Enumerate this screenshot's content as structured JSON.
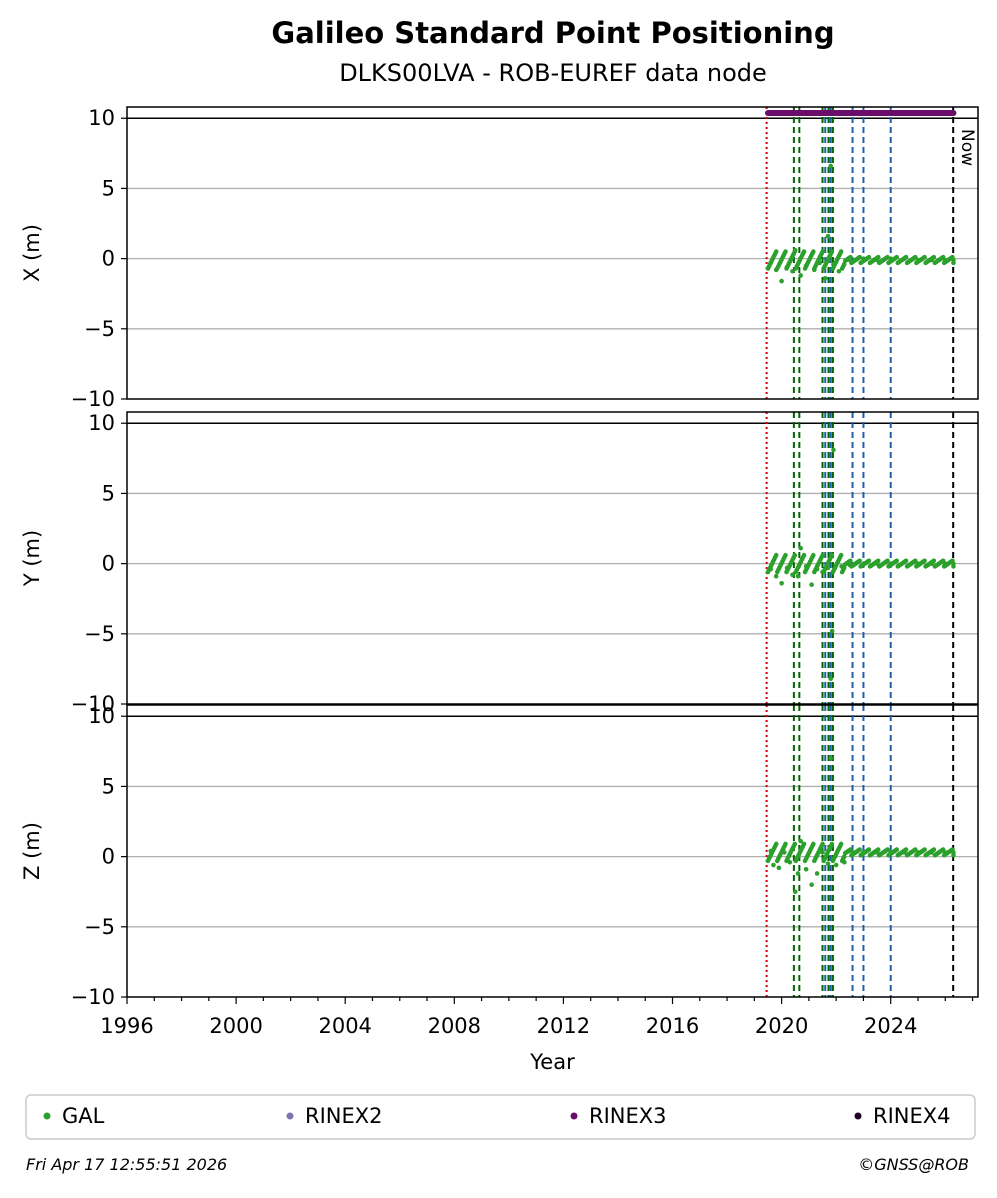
{
  "chart_data": {
    "type": "scatter",
    "title": "Galileo Standard Point Positioning",
    "subtitle": "DLKS00LVA - ROB-EUREF data node",
    "xlabel": "Year",
    "xlim": [
      1996,
      2027.2
    ],
    "xticks": [
      1996,
      2000,
      2004,
      2008,
      2012,
      2016,
      2020,
      2024
    ],
    "panels": [
      {
        "ylabel": "X (m)",
        "ylim": [
          -10,
          10
        ],
        "yticks": [
          -10,
          -5,
          0,
          5,
          10
        ],
        "grid": true
      },
      {
        "ylabel": "Y (m)",
        "ylim": [
          -10,
          10
        ],
        "yticks": [
          -10,
          -5,
          0,
          5,
          10
        ],
        "grid": true
      },
      {
        "ylabel": "Z (m)",
        "ylim": [
          -10,
          10
        ],
        "yticks": [
          -10,
          -5,
          0,
          5,
          10
        ],
        "grid": true
      }
    ],
    "series": [
      {
        "name": "GAL",
        "color": "#2ca02c",
        "data_range": [
          2019.5,
          2026.3
        ],
        "points": {
          "X": [
            [
              2019.6,
              -0.3
            ],
            [
              2019.8,
              -0.8
            ],
            [
              2020.0,
              -1.6
            ],
            [
              2020.2,
              -0.6
            ],
            [
              2020.4,
              -0.9
            ],
            [
              2020.5,
              0.6
            ],
            [
              2020.7,
              -1.2
            ],
            [
              2020.9,
              -0.5
            ],
            [
              2021.2,
              -0.8
            ],
            [
              2021.4,
              -0.3
            ],
            [
              2021.6,
              -1.4
            ],
            [
              2021.7,
              1.6
            ],
            [
              2021.8,
              6.6
            ],
            [
              2021.9,
              -0.4
            ],
            [
              2022.1,
              -0.9
            ],
            [
              2022.5,
              -0.1
            ],
            [
              2023.0,
              0.0
            ],
            [
              2023.5,
              -0.1
            ],
            [
              2024.0,
              0.0
            ],
            [
              2024.5,
              0.0
            ],
            [
              2025.0,
              -0.1
            ],
            [
              2025.5,
              -0.1
            ],
            [
              2026.0,
              -0.1
            ],
            [
              2026.3,
              -0.1
            ]
          ],
          "Y": [
            [
              2019.6,
              -0.4
            ],
            [
              2019.8,
              -0.9
            ],
            [
              2020.0,
              -1.4
            ],
            [
              2020.2,
              -0.3
            ],
            [
              2020.4,
              -0.8
            ],
            [
              2020.6,
              -0.9
            ],
            [
              2020.7,
              1.1
            ],
            [
              2020.9,
              -0.2
            ],
            [
              2021.1,
              -1.5
            ],
            [
              2021.3,
              -0.4
            ],
            [
              2021.5,
              -0.6
            ],
            [
              2021.7,
              -0.3
            ],
            [
              2021.8,
              -8.2
            ],
            [
              2021.85,
              -4.8
            ],
            [
              2021.9,
              8.1
            ],
            [
              2022.2,
              -0.2
            ],
            [
              2022.5,
              -0.1
            ],
            [
              2023.0,
              0.0
            ],
            [
              2023.5,
              0.0
            ],
            [
              2024.0,
              0.0
            ],
            [
              2024.5,
              0.1
            ],
            [
              2025.0,
              0.0
            ],
            [
              2025.5,
              0.0
            ],
            [
              2026.0,
              0.0
            ],
            [
              2026.3,
              0.0
            ]
          ],
          "Z": [
            [
              2019.6,
              0.4
            ],
            [
              2019.7,
              -0.6
            ],
            [
              2019.9,
              -0.8
            ],
            [
              2020.1,
              0.3
            ],
            [
              2020.3,
              -0.4
            ],
            [
              2020.5,
              -2.5
            ],
            [
              2020.6,
              -1.2
            ],
            [
              2020.7,
              1.1
            ],
            [
              2020.9,
              -0.9
            ],
            [
              2021.1,
              -2.0
            ],
            [
              2021.3,
              -1.2
            ],
            [
              2021.5,
              0.3
            ],
            [
              2021.7,
              -0.5
            ],
            [
              2021.8,
              7.0
            ],
            [
              2022.0,
              -0.6
            ],
            [
              2022.3,
              -0.4
            ],
            [
              2022.6,
              0.3
            ],
            [
              2023.0,
              0.3
            ],
            [
              2023.5,
              0.3
            ],
            [
              2024.0,
              0.3
            ],
            [
              2024.5,
              0.3
            ],
            [
              2025.0,
              0.3
            ],
            [
              2025.5,
              0.3
            ],
            [
              2026.0,
              0.3
            ],
            [
              2026.3,
              0.3
            ]
          ]
        }
      },
      {
        "name": "RINEX2",
        "color": "#8172b3",
        "data_range": []
      },
      {
        "name": "RINEX3",
        "color": "#6a0d6a",
        "data_range": [
          2019.5,
          2026.3
        ]
      },
      {
        "name": "RINEX4",
        "color": "#200020",
        "data_range": []
      }
    ],
    "vertical_lines": [
      {
        "x": 2019.45,
        "color": "#cc0000",
        "style": "dotted"
      },
      {
        "x": 2020.45,
        "color": "#006400",
        "style": "dashed"
      },
      {
        "x": 2020.65,
        "color": "#006400",
        "style": "dashed"
      },
      {
        "x": 2021.5,
        "color": "#006400",
        "style": "dashed"
      },
      {
        "x": 2021.72,
        "color": "#006400",
        "style": "dashed"
      },
      {
        "x": 2021.88,
        "color": "#006400",
        "style": "dashed"
      },
      {
        "x": 2021.6,
        "color": "#1f5fa8",
        "style": "dashed"
      },
      {
        "x": 2021.8,
        "color": "#1f5fa8",
        "style": "dashed"
      },
      {
        "x": 2022.6,
        "color": "#1f5fa8",
        "style": "dashed"
      },
      {
        "x": 2023.0,
        "color": "#1f5fa8",
        "style": "dashed"
      },
      {
        "x": 2024.0,
        "color": "#1f5fa8",
        "style": "dashed"
      },
      {
        "x": 2026.29,
        "color": "#000000",
        "style": "dashed",
        "label": "Now"
      }
    ],
    "legend": {
      "position": "bottom",
      "entries": [
        "GAL",
        "RINEX2",
        "RINEX3",
        "RINEX4"
      ]
    }
  },
  "footer": {
    "timestamp": "Fri Apr 17 12:55:51 2026",
    "credit": "©GNSS@ROB"
  }
}
